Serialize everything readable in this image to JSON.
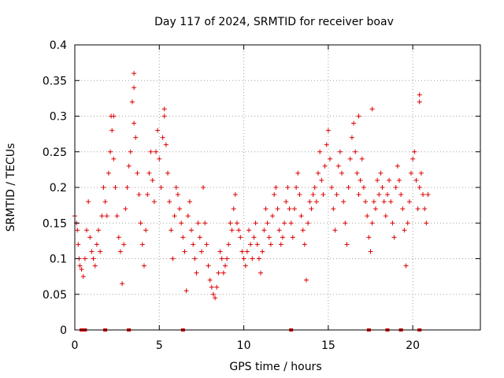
{
  "chart_data": {
    "type": "scatter",
    "title": "Day 117 of 2024, SRMTID for receiver boav",
    "xlabel": "GPS time / hours",
    "ylabel": "SRMTID / TECUs",
    "xlim": [
      0,
      24
    ],
    "ylim": [
      0,
      0.4
    ],
    "xticks": [
      0,
      5,
      10,
      15,
      20
    ],
    "xtick_labels": [
      "0",
      "5",
      "10",
      "15",
      "20"
    ],
    "yticks": [
      0,
      0.05,
      0.1,
      0.15,
      0.2,
      0.25,
      0.3,
      0.35,
      0.4
    ],
    "ytick_labels": [
      "0",
      "0.05",
      "0.1",
      "0.15",
      "0.2",
      "0.25",
      "0.3",
      "0.35",
      "0.4"
    ],
    "grid": true,
    "marker": "+",
    "color": "#dd0000",
    "series": [
      {
        "name": "SRMTID",
        "x": [
          0.0,
          0.1,
          0.15,
          0.2,
          0.25,
          0.3,
          0.4,
          0.5,
          0.6,
          0.7,
          0.8,
          0.9,
          1.0,
          1.1,
          1.2,
          1.3,
          1.4,
          1.5,
          1.6,
          1.7,
          1.8,
          1.9,
          2.0,
          2.1,
          2.15,
          2.2,
          2.3,
          2.4,
          2.5,
          2.6,
          2.7,
          2.8,
          2.9,
          3.0,
          3.1,
          3.2,
          3.3,
          3.4,
          3.5,
          3.6,
          3.7,
          3.8,
          3.9,
          4.0,
          4.1,
          4.2,
          4.3,
          4.4,
          4.5,
          4.6,
          4.7,
          4.8,
          4.9,
          5.0,
          5.1,
          5.2,
          5.3,
          5.4,
          5.5,
          5.6,
          5.7,
          5.8,
          5.9,
          6.0,
          6.1,
          6.2,
          6.3,
          6.4,
          6.5,
          6.6,
          6.7,
          6.8,
          6.9,
          7.0,
          7.1,
          7.2,
          7.3,
          7.4,
          7.5,
          7.6,
          7.7,
          7.8,
          7.9,
          8.0,
          8.1,
          8.2,
          8.3,
          8.4,
          8.5,
          8.6,
          8.7,
          8.8,
          8.9,
          9.0,
          9.1,
          9.2,
          9.3,
          9.4,
          9.5,
          9.6,
          9.7,
          9.8,
          9.9,
          10.0,
          10.1,
          10.2,
          10.3,
          10.4,
          10.5,
          10.6,
          10.7,
          10.8,
          10.9,
          11.0,
          11.1,
          11.2,
          11.3,
          11.4,
          11.5,
          11.6,
          11.7,
          11.8,
          11.9,
          12.0,
          12.1,
          12.2,
          12.3,
          12.4,
          12.5,
          12.6,
          12.7,
          12.8,
          12.9,
          13.0,
          13.1,
          13.2,
          13.3,
          13.4,
          13.5,
          13.6,
          13.7,
          13.8,
          13.9,
          14.0,
          14.1,
          14.2,
          14.3,
          14.4,
          14.5,
          14.6,
          14.7,
          14.8,
          14.9,
          15.0,
          15.1,
          15.2,
          15.3,
          15.4,
          15.5,
          15.6,
          15.7,
          15.8,
          15.9,
          16.0,
          16.1,
          16.2,
          16.3,
          16.4,
          16.5,
          16.6,
          16.7,
          16.8,
          16.9,
          17.0,
          17.1,
          17.2,
          17.3,
          17.4,
          17.5,
          17.6,
          17.7,
          17.8,
          17.9,
          18.0,
          18.1,
          18.2,
          18.3,
          18.4,
          18.5,
          18.6,
          18.7,
          18.8,
          18.9,
          19.0,
          19.1,
          19.2,
          19.3,
          19.4,
          19.5,
          19.6,
          19.7,
          19.8,
          19.9,
          20.0,
          20.1,
          20.2,
          20.3,
          20.4,
          20.5,
          20.6,
          20.7,
          20.8,
          20.9,
          3.5,
          3.5,
          5.3,
          2.3,
          16.8,
          17.6,
          20.4,
          20.4
        ],
        "y": [
          0.16,
          0.15,
          0.14,
          0.12,
          0.1,
          0.09,
          0.085,
          0.075,
          0.1,
          0.14,
          0.18,
          0.13,
          0.11,
          0.1,
          0.09,
          0.12,
          0.14,
          0.11,
          0.16,
          0.2,
          0.18,
          0.16,
          0.22,
          0.25,
          0.3,
          0.28,
          0.24,
          0.2,
          0.16,
          0.13,
          0.11,
          0.065,
          0.12,
          0.17,
          0.2,
          0.23,
          0.25,
          0.32,
          0.29,
          0.27,
          0.22,
          0.19,
          0.15,
          0.12,
          0.09,
          0.14,
          0.19,
          0.22,
          0.25,
          0.21,
          0.18,
          0.25,
          0.28,
          0.24,
          0.2,
          0.27,
          0.3,
          0.26,
          0.22,
          0.18,
          0.14,
          0.1,
          0.16,
          0.2,
          0.19,
          0.17,
          0.15,
          0.13,
          0.11,
          0.055,
          0.16,
          0.18,
          0.14,
          0.12,
          0.1,
          0.08,
          0.15,
          0.13,
          0.11,
          0.2,
          0.15,
          0.12,
          0.09,
          0.07,
          0.06,
          0.05,
          0.045,
          0.06,
          0.08,
          0.11,
          0.1,
          0.08,
          0.09,
          0.1,
          0.12,
          0.15,
          0.14,
          0.17,
          0.19,
          0.15,
          0.14,
          0.13,
          0.11,
          0.1,
          0.09,
          0.11,
          0.14,
          0.12,
          0.1,
          0.13,
          0.15,
          0.12,
          0.1,
          0.08,
          0.11,
          0.14,
          0.17,
          0.15,
          0.13,
          0.12,
          0.16,
          0.19,
          0.2,
          0.17,
          0.14,
          0.12,
          0.13,
          0.15,
          0.18,
          0.2,
          0.17,
          0.15,
          0.13,
          0.17,
          0.2,
          0.22,
          0.19,
          0.16,
          0.14,
          0.12,
          0.07,
          0.15,
          0.18,
          0.17,
          0.19,
          0.2,
          0.18,
          0.22,
          0.25,
          0.21,
          0.19,
          0.23,
          0.26,
          0.28,
          0.24,
          0.2,
          0.17,
          0.14,
          0.19,
          0.23,
          0.25,
          0.22,
          0.18,
          0.15,
          0.12,
          0.2,
          0.24,
          0.27,
          0.29,
          0.25,
          0.22,
          0.19,
          0.21,
          0.24,
          0.2,
          0.18,
          0.16,
          0.13,
          0.11,
          0.15,
          0.18,
          0.17,
          0.21,
          0.19,
          0.22,
          0.2,
          0.18,
          0.16,
          0.19,
          0.21,
          0.18,
          0.15,
          0.13,
          0.2,
          0.23,
          0.21,
          0.19,
          0.17,
          0.14,
          0.09,
          0.15,
          0.18,
          0.22,
          0.24,
          0.25,
          0.21,
          0.17,
          0.2,
          0.22,
          0.19,
          0.17,
          0.15,
          0.19,
          0.36,
          0.34,
          0.31,
          0.3,
          0.3,
          0.31,
          0.33,
          0.32
        ],
        "markers_at_zero": [
          0.4,
          0.6,
          1.8,
          3.2,
          6.4,
          12.8,
          17.4,
          18.5,
          19.3,
          20.4
        ]
      }
    ]
  }
}
